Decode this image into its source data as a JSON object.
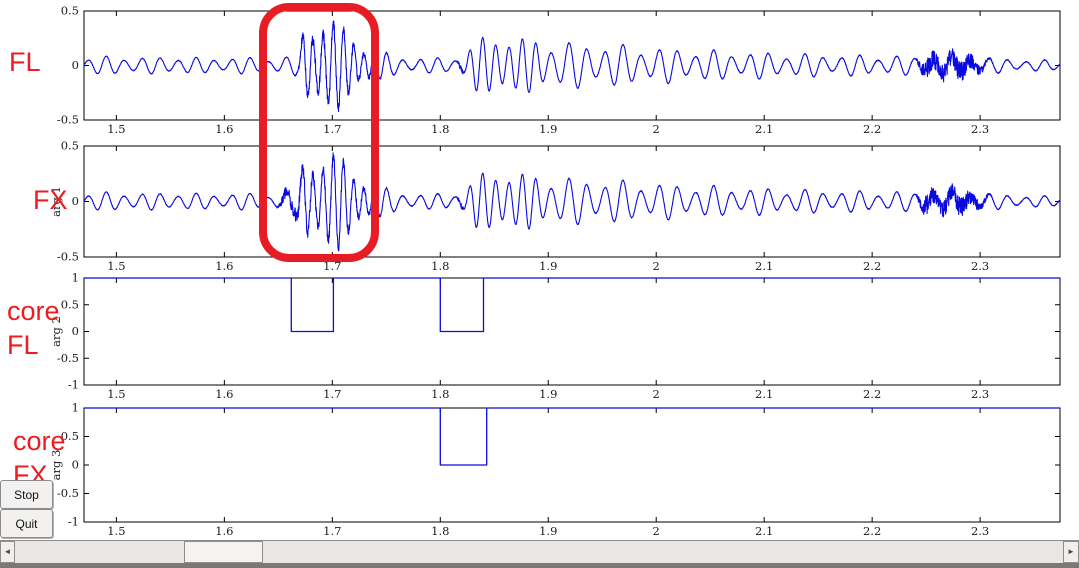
{
  "figure": {
    "background": "#ffffff",
    "accent_red": "#e81c24",
    "line_blue": "#0a0ae0",
    "axis_color": "#000000",
    "tick_label_color": "#1c1c1c"
  },
  "annotation_labels": {
    "fl": "FL",
    "fx": "FX",
    "core_fl": "core FL",
    "core_fx": "core FX"
  },
  "buttons": {
    "stop": "Stop",
    "quit": "Quit"
  },
  "scrollbar": {
    "left_arrow": "◄",
    "right_arrow": "►"
  },
  "chart_data": [
    {
      "id": "fl",
      "type": "line",
      "title": "",
      "xlabel": "",
      "ylabel": "",
      "xlim": [
        1.47,
        2.374
      ],
      "ylim": [
        -0.5,
        0.5
      ],
      "x_ticks": [
        "1.5",
        "1.6",
        "1.7",
        "1.8",
        "1.9",
        "2",
        "2.1",
        "2.2",
        "2.3"
      ],
      "y_ticks": [
        "0.5",
        "0",
        "-0.5"
      ],
      "grid": false,
      "legend": null,
      "description": "Seismic-like trace: low ripple ~0.08, strong high-frequency burst 1.67-1.75 reaching +/-0.5, swell 1.82-1.90 peaking ~0.33, slow decay, fuzzy noise burst 2.25-2.30, small tail",
      "signal": {
        "kind": "am_wave",
        "points": 4200,
        "seed": 11,
        "am": {
          "freq": 23,
          "depth": 0.5
        },
        "amp_env": [
          [
            1.47,
            0.08
          ],
          [
            1.505,
            0.09
          ],
          [
            1.53,
            0.075
          ],
          [
            1.555,
            0.09
          ],
          [
            1.58,
            0.07
          ],
          [
            1.61,
            0.08
          ],
          [
            1.64,
            0.07
          ],
          [
            1.66,
            0.085
          ],
          [
            1.669,
            0.1
          ],
          [
            1.674,
            0.43
          ],
          [
            1.69,
            0.47
          ],
          [
            1.702,
            0.43
          ],
          [
            1.714,
            0.31
          ],
          [
            1.73,
            0.21
          ],
          [
            1.745,
            0.13
          ],
          [
            1.762,
            0.085
          ],
          [
            1.79,
            0.07
          ],
          [
            1.812,
            0.078
          ],
          [
            1.822,
            0.11
          ],
          [
            1.833,
            0.24
          ],
          [
            1.846,
            0.28
          ],
          [
            1.858,
            0.33
          ],
          [
            1.872,
            0.26
          ],
          [
            1.892,
            0.24
          ],
          [
            1.925,
            0.215
          ],
          [
            1.96,
            0.2
          ],
          [
            2.0,
            0.17
          ],
          [
            2.06,
            0.14
          ],
          [
            2.12,
            0.115
          ],
          [
            2.18,
            0.1
          ],
          [
            2.24,
            0.088
          ],
          [
            2.3,
            0.078
          ],
          [
            2.34,
            0.06
          ],
          [
            2.374,
            0.045
          ]
        ],
        "freq_env": [
          [
            1.47,
            60
          ],
          [
            1.666,
            60
          ],
          [
            1.676,
            106
          ],
          [
            1.735,
            106
          ],
          [
            1.758,
            62
          ],
          [
            1.816,
            62
          ],
          [
            1.824,
            84
          ],
          [
            1.885,
            80
          ],
          [
            1.908,
            60
          ],
          [
            2.374,
            58
          ]
        ],
        "noise_env": [
          [
            1.47,
            0.003
          ],
          [
            1.665,
            0.003
          ],
          [
            1.671,
            0.04
          ],
          [
            1.678,
            0.05
          ],
          [
            1.7,
            0.045
          ],
          [
            1.722,
            0.03
          ],
          [
            1.745,
            0.01
          ],
          [
            1.757,
            0.004
          ],
          [
            1.815,
            0.004
          ],
          [
            1.819,
            0.028
          ],
          [
            1.823,
            0.004
          ],
          [
            2.24,
            0.004
          ],
          [
            2.25,
            0.09
          ],
          [
            2.27,
            0.075
          ],
          [
            2.282,
            0.095
          ],
          [
            2.298,
            0.05
          ],
          [
            2.308,
            0.012
          ],
          [
            2.315,
            0.004
          ],
          [
            2.374,
            0.003
          ]
        ]
      }
    },
    {
      "id": "fx",
      "type": "line",
      "title": "",
      "xlabel": "",
      "ylabel": "arg 1",
      "xlim": [
        1.47,
        2.374
      ],
      "ylim": [
        -0.5,
        0.5
      ],
      "x_ticks": [
        "1.5",
        "1.6",
        "1.7",
        "1.8",
        "1.9",
        "2",
        "2.1",
        "2.2",
        "2.3"
      ],
      "y_ticks": [
        "0.5",
        "0",
        "-0.5"
      ],
      "grid": false,
      "legend": null,
      "description": "Same trace as FL but burst onset is preceded by fuzzy noise starting ~1.655",
      "signal": {
        "kind": "am_wave",
        "points": 4200,
        "seed": 29,
        "am": {
          "freq": 23,
          "depth": 0.5
        },
        "amp_env": [
          [
            1.47,
            0.08
          ],
          [
            1.505,
            0.09
          ],
          [
            1.53,
            0.075
          ],
          [
            1.555,
            0.09
          ],
          [
            1.58,
            0.07
          ],
          [
            1.61,
            0.08
          ],
          [
            1.64,
            0.07
          ],
          [
            1.656,
            0.09
          ],
          [
            1.666,
            0.12
          ],
          [
            1.674,
            0.43
          ],
          [
            1.692,
            0.47
          ],
          [
            1.704,
            0.43
          ],
          [
            1.716,
            0.31
          ],
          [
            1.732,
            0.21
          ],
          [
            1.747,
            0.13
          ],
          [
            1.764,
            0.085
          ],
          [
            1.79,
            0.07
          ],
          [
            1.812,
            0.078
          ],
          [
            1.822,
            0.11
          ],
          [
            1.833,
            0.24
          ],
          [
            1.846,
            0.28
          ],
          [
            1.858,
            0.33
          ],
          [
            1.872,
            0.26
          ],
          [
            1.892,
            0.24
          ],
          [
            1.925,
            0.215
          ],
          [
            1.96,
            0.2
          ],
          [
            2.0,
            0.17
          ],
          [
            2.06,
            0.14
          ],
          [
            2.12,
            0.115
          ],
          [
            2.18,
            0.1
          ],
          [
            2.24,
            0.088
          ],
          [
            2.3,
            0.078
          ],
          [
            2.34,
            0.06
          ],
          [
            2.374,
            0.045
          ]
        ],
        "freq_env": [
          [
            1.47,
            60
          ],
          [
            1.666,
            60
          ],
          [
            1.676,
            106
          ],
          [
            1.735,
            106
          ],
          [
            1.758,
            62
          ],
          [
            1.816,
            62
          ],
          [
            1.824,
            84
          ],
          [
            1.885,
            80
          ],
          [
            1.908,
            60
          ],
          [
            2.374,
            58
          ]
        ],
        "noise_env": [
          [
            1.47,
            0.003
          ],
          [
            1.648,
            0.003
          ],
          [
            1.655,
            0.045
          ],
          [
            1.67,
            0.065
          ],
          [
            1.676,
            0.05
          ],
          [
            1.7,
            0.045
          ],
          [
            1.72,
            0.035
          ],
          [
            1.745,
            0.012
          ],
          [
            1.76,
            0.004
          ],
          [
            1.815,
            0.004
          ],
          [
            1.819,
            0.03
          ],
          [
            1.823,
            0.004
          ],
          [
            2.24,
            0.004
          ],
          [
            2.25,
            0.09
          ],
          [
            2.27,
            0.075
          ],
          [
            2.282,
            0.095
          ],
          [
            2.298,
            0.05
          ],
          [
            2.308,
            0.012
          ],
          [
            2.315,
            0.004
          ],
          [
            2.374,
            0.003
          ]
        ]
      }
    },
    {
      "id": "core_fl",
      "type": "line",
      "title": "",
      "xlabel": "",
      "ylabel": "arg 2",
      "xlim": [
        1.47,
        2.374
      ],
      "ylim": [
        -1,
        1
      ],
      "x_ticks": [
        "1.5",
        "1.6",
        "1.7",
        "1.8",
        "1.9",
        "2",
        "2.1",
        "2.2",
        "2.3"
      ],
      "y_ticks": [
        "1",
        "0.5",
        "0",
        "-0.5",
        "-1"
      ],
      "grid": false,
      "legend": null,
      "description": "Binary gate signal, value 1 with drops to 0 during detected events",
      "signal": {
        "kind": "gate",
        "high": 1,
        "low": 0,
        "dips": [
          [
            1.662,
            1.701
          ],
          [
            1.8,
            1.84
          ]
        ]
      }
    },
    {
      "id": "core_fx",
      "type": "line",
      "title": "",
      "xlabel": "",
      "ylabel": "arg 3",
      "xlim": [
        1.47,
        2.374
      ],
      "ylim": [
        -1,
        1
      ],
      "x_ticks": [
        "1.5",
        "1.6",
        "1.7",
        "1.8",
        "1.9",
        "2",
        "2.1",
        "2.2",
        "2.3"
      ],
      "y_ticks": [
        "1",
        "0.5",
        "0",
        "-0.5",
        "-1"
      ],
      "grid": false,
      "legend": null,
      "description": "Binary gate signal, value 1 with a single drop to 0 near 1.8",
      "signal": {
        "kind": "gate",
        "high": 1,
        "low": 0,
        "dips": [
          [
            1.8,
            1.843
          ]
        ]
      }
    }
  ]
}
